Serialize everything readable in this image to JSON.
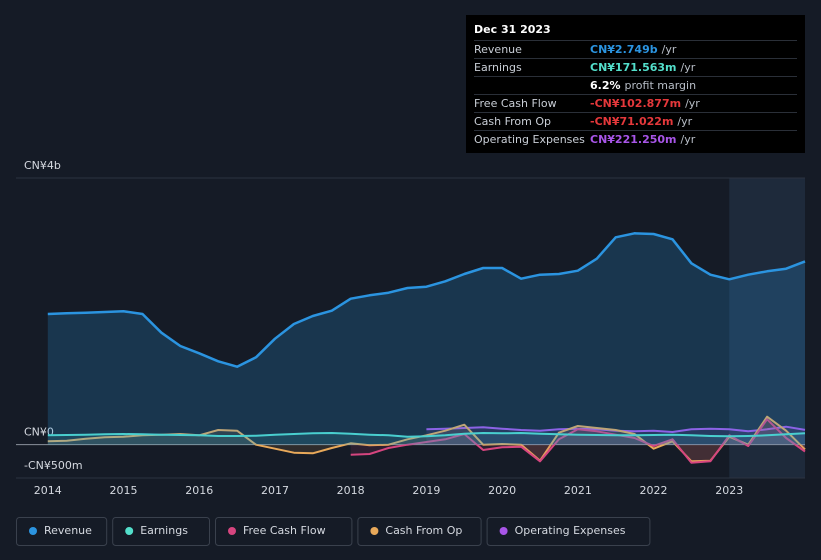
{
  "chart_data": {
    "type": "line",
    "x": [
      2014,
      2014.25,
      2014.5,
      2014.75,
      2015,
      2015.25,
      2015.5,
      2015.75,
      2016,
      2016.25,
      2016.5,
      2016.75,
      2017,
      2017.25,
      2017.5,
      2017.75,
      2018,
      2018.25,
      2018.5,
      2018.75,
      2019,
      2019.25,
      2019.5,
      2019.75,
      2020,
      2020.25,
      2020.5,
      2020.75,
      2021,
      2021.25,
      2021.5,
      2021.75,
      2022,
      2022.25,
      2022.5,
      2022.75,
      2023,
      2023.25,
      2023.5,
      2023.75,
      2024
    ],
    "xlim": [
      2013.58,
      2024
    ],
    "xticks": [
      2014,
      2015,
      2016,
      2017,
      2018,
      2019,
      2020,
      2021,
      2022,
      2023
    ],
    "ylim": [
      -500,
      4000
    ],
    "yticks": [
      {
        "value": -500,
        "label": "-CN¥500m"
      },
      {
        "value": 0,
        "label": "CN¥0"
      },
      {
        "value": 4000,
        "label": "CN¥4b"
      }
    ],
    "highlight_from": 2023,
    "series": [
      {
        "name": "Revenue",
        "color": "#2b94e0",
        "area": true,
        "values": [
          1960,
          1970,
          1980,
          1990,
          2000,
          1960,
          1680,
          1480,
          1370,
          1250,
          1170,
          1310,
          1590,
          1810,
          1930,
          2010,
          2190,
          2240,
          2280,
          2350,
          2370,
          2450,
          2560,
          2650,
          2650,
          2490,
          2550,
          2560,
          2610,
          2790,
          3110,
          3170,
          3160,
          3080,
          2720,
          2550,
          2480,
          2550,
          2600,
          2640,
          2749
        ]
      },
      {
        "name": "Earnings",
        "color": "#53dfcb",
        "values": [
          140,
          145,
          150,
          155,
          160,
          155,
          150,
          145,
          140,
          130,
          130,
          135,
          150,
          160,
          170,
          175,
          165,
          150,
          140,
          120,
          125,
          140,
          165,
          175,
          170,
          175,
          165,
          155,
          150,
          145,
          140,
          140,
          145,
          150,
          140,
          130,
          125,
          130,
          140,
          155,
          171.563
        ]
      },
      {
        "name": "Free Cash Flow",
        "color": "#d6457f",
        "values": [
          null,
          null,
          null,
          null,
          null,
          null,
          null,
          null,
          null,
          null,
          null,
          null,
          null,
          null,
          null,
          null,
          -150,
          -140,
          -50,
          0,
          40,
          80,
          160,
          -80,
          -40,
          -30,
          -250,
          80,
          230,
          200,
          150,
          100,
          -20,
          80,
          -270,
          -250,
          140,
          -20,
          380,
          100,
          -102.877
        ]
      },
      {
        "name": "Cash From Op",
        "color": "#e8a95a",
        "values": [
          50,
          60,
          90,
          110,
          120,
          140,
          150,
          160,
          140,
          220,
          210,
          0,
          -60,
          -120,
          -130,
          -50,
          20,
          -10,
          0,
          80,
          140,
          210,
          300,
          0,
          10,
          0,
          -240,
          180,
          280,
          250,
          220,
          160,
          -60,
          50,
          -250,
          -240,
          120,
          0,
          420,
          210,
          -71.022
        ]
      },
      {
        "name": "Operating Expenses",
        "color": "#a855e8",
        "values": [
          null,
          null,
          null,
          null,
          null,
          null,
          null,
          null,
          null,
          null,
          null,
          null,
          null,
          null,
          null,
          null,
          null,
          null,
          null,
          null,
          230,
          240,
          250,
          260,
          240,
          220,
          210,
          230,
          240,
          230,
          210,
          200,
          210,
          190,
          230,
          240,
          230,
          200,
          230,
          270,
          221.25
        ]
      }
    ]
  },
  "tooltip": {
    "date": "Dec 31 2023",
    "rows": [
      {
        "label": "Revenue",
        "value": "CN¥2.749b",
        "unit": "/yr",
        "color": "#2b94e0"
      },
      {
        "label": "Earnings",
        "value": "CN¥171.563m",
        "unit": "/yr",
        "color": "#53dfcb"
      },
      {
        "value": "6.2%",
        "unit": "profit margin",
        "color": "#ffffff"
      },
      {
        "label": "Free Cash Flow",
        "value": "-CN¥102.877m",
        "unit": "/yr",
        "color": "#e5383b"
      },
      {
        "label": "Cash From Op",
        "value": "-CN¥71.022m",
        "unit": "/yr",
        "color": "#e5383b"
      },
      {
        "label": "Operating Expenses",
        "value": "CN¥221.250m",
        "unit": "/yr",
        "color": "#a855e8"
      }
    ]
  }
}
